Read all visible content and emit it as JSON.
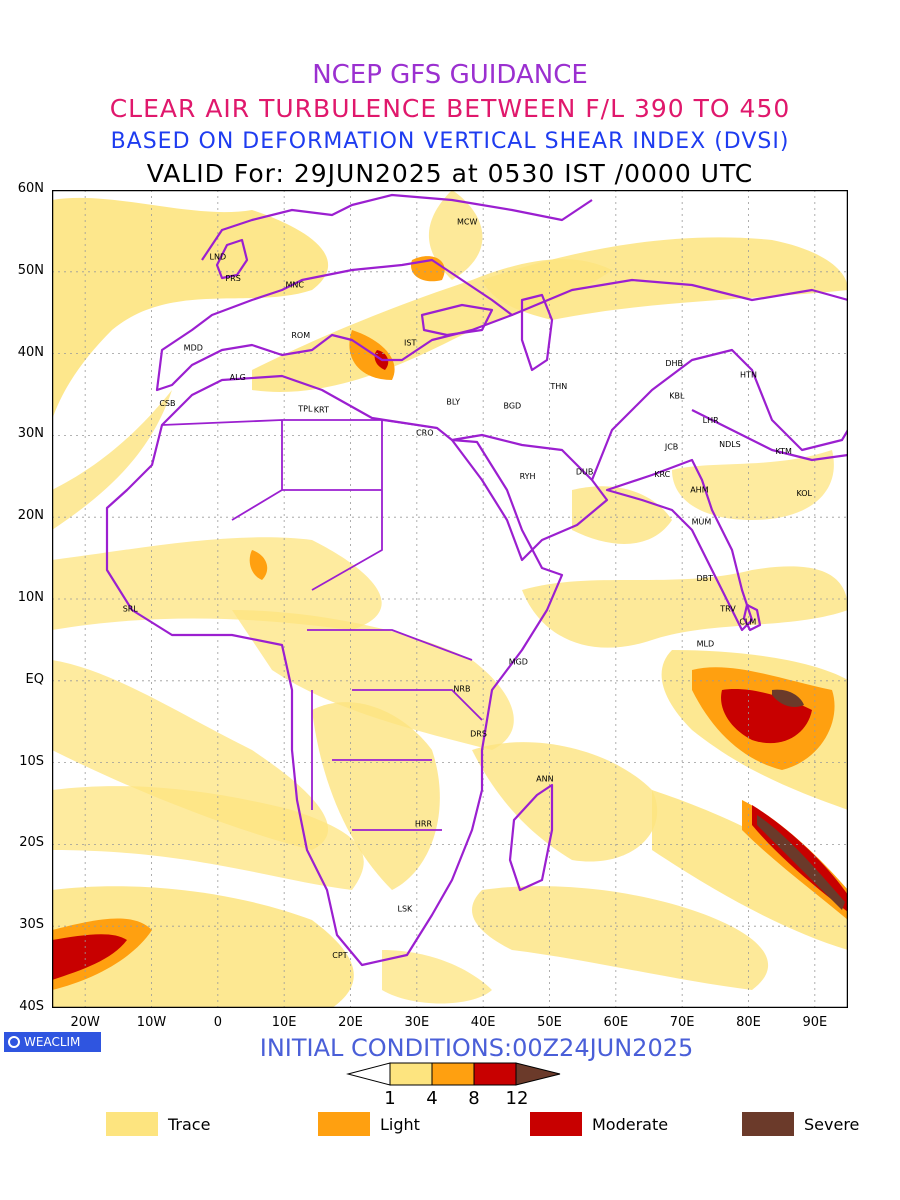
{
  "titles": {
    "line1": "NCEP GFS GUIDANCE",
    "line2": "CLEAR AIR TURBULENCE BETWEEN F/L 390 TO 450",
    "line3": "BASED ON DEFORMATION VERTICAL SHEAR INDEX (DVSI)",
    "line4": "VALID For: 29JUN2025 at 0530 IST /0000 UTC"
  },
  "axes": {
    "lat_labels": [
      "60N",
      "50N",
      "40N",
      "30N",
      "20N",
      "10N",
      "EQ",
      "10S",
      "20S",
      "30S",
      "40S"
    ],
    "lon_labels": [
      "20W",
      "10W",
      "0",
      "10E",
      "20E",
      "30E",
      "40E",
      "50E",
      "60E",
      "70E",
      "80E",
      "90E"
    ],
    "lat_range": [
      -40,
      60
    ],
    "lon_range": [
      -25,
      95
    ],
    "grid": true
  },
  "stations": [
    {
      "code": "MCW",
      "lon": 37.6,
      "lat": 55.8
    },
    {
      "code": "LND",
      "lon": 0.0,
      "lat": 51.5
    },
    {
      "code": "PRS",
      "lon": 2.3,
      "lat": 48.9
    },
    {
      "code": "MNC",
      "lon": 11.6,
      "lat": 48.1
    },
    {
      "code": "ROM",
      "lon": 12.5,
      "lat": 41.9
    },
    {
      "code": "MDD",
      "lon": -3.7,
      "lat": 40.4
    },
    {
      "code": "IST",
      "lon": 29.0,
      "lat": 41.0
    },
    {
      "code": "ALG",
      "lon": 3.0,
      "lat": 36.8
    },
    {
      "code": "CSB",
      "lon": -7.6,
      "lat": 33.6
    },
    {
      "code": "TPL",
      "lon": 13.2,
      "lat": 32.9
    },
    {
      "code": "KRT",
      "lon": 15.6,
      "lat": 32.8
    },
    {
      "code": "BLY",
      "lon": 35.5,
      "lat": 33.8
    },
    {
      "code": "CRO",
      "lon": 31.2,
      "lat": 30.0
    },
    {
      "code": "BGD",
      "lon": 44.4,
      "lat": 33.3
    },
    {
      "code": "THN",
      "lon": 51.4,
      "lat": 35.7
    },
    {
      "code": "RYH",
      "lon": 46.7,
      "lat": 24.7
    },
    {
      "code": "DUB",
      "lon": 55.3,
      "lat": 25.2
    },
    {
      "code": "DHB",
      "lon": 68.8,
      "lat": 38.5
    },
    {
      "code": "HTN",
      "lon": 80.0,
      "lat": 37.1
    },
    {
      "code": "KBL",
      "lon": 69.2,
      "lat": 34.5
    },
    {
      "code": "LHR",
      "lon": 74.3,
      "lat": 31.5
    },
    {
      "code": "JCB",
      "lon": 68.4,
      "lat": 28.3
    },
    {
      "code": "NDLS",
      "lon": 77.2,
      "lat": 28.6
    },
    {
      "code": "KTM",
      "lon": 85.3,
      "lat": 27.7
    },
    {
      "code": "KRC",
      "lon": 67.0,
      "lat": 24.9
    },
    {
      "code": "AHM",
      "lon": 72.6,
      "lat": 23.0
    },
    {
      "code": "KOL",
      "lon": 88.4,
      "lat": 22.6
    },
    {
      "code": "MUM",
      "lon": 72.9,
      "lat": 19.1
    },
    {
      "code": "DBT",
      "lon": 73.4,
      "lat": 12.2
    },
    {
      "code": "TRV",
      "lon": 76.9,
      "lat": 8.5
    },
    {
      "code": "CLM",
      "lon": 79.9,
      "lat": 6.9
    },
    {
      "code": "MLD",
      "lon": 73.5,
      "lat": 4.2
    },
    {
      "code": "SRL",
      "lon": -13.2,
      "lat": 8.5
    },
    {
      "code": "MGD",
      "lon": 45.3,
      "lat": 2.0
    },
    {
      "code": "NRB",
      "lon": 36.8,
      "lat": -1.3
    },
    {
      "code": "DRS",
      "lon": 39.3,
      "lat": -6.8
    },
    {
      "code": "ANN",
      "lon": 49.3,
      "lat": -12.3
    },
    {
      "code": "HRR",
      "lon": 31.0,
      "lat": -17.8
    },
    {
      "code": "LSK",
      "lon": 28.2,
      "lat": -28.2
    },
    {
      "code": "CPT",
      "lon": 18.4,
      "lat": -33.9
    }
  ],
  "footer": {
    "badge": "WEACLIM",
    "initial_conditions": "INITIAL CONDITIONS:00Z24JUN2025"
  },
  "colorbar": {
    "ticks": [
      "1",
      "4",
      "8",
      "12"
    ],
    "colors": [
      "#fde47f",
      "#ffa010",
      "#c80000",
      "#6b3a2a"
    ]
  },
  "legend": [
    {
      "label": "Trace",
      "color": "#fde47f"
    },
    {
      "label": "Light",
      "color": "#ffa010"
    },
    {
      "label": "Moderate",
      "color": "#c80000"
    },
    {
      "label": "Severe",
      "color": "#6b3a2a"
    }
  ],
  "colors": {
    "boundary": "#9b1fd0",
    "trace": "#fde47f",
    "light": "#ffa010",
    "moderate": "#c80000",
    "severe": "#6b3a2a"
  }
}
